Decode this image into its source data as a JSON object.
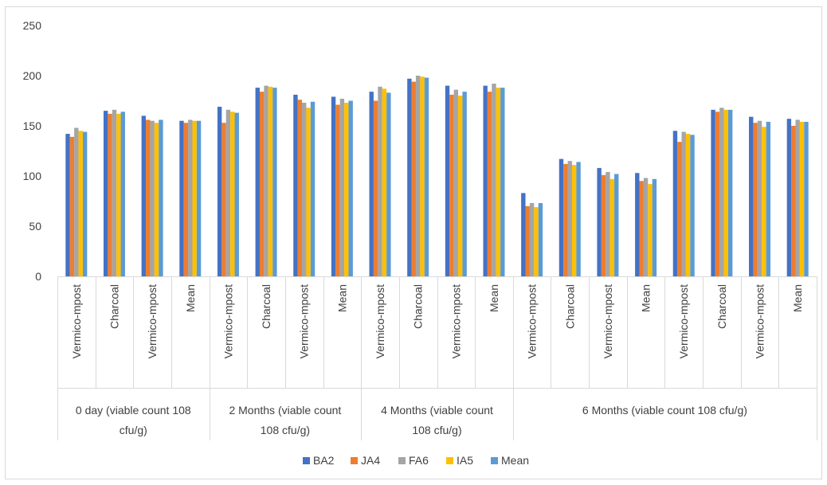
{
  "chart_data": {
    "type": "bar",
    "title": "",
    "xlabel": "",
    "ylabel": "",
    "ylim": [
      0,
      250
    ],
    "yticks": [
      "0",
      "50",
      "100",
      "150",
      "200",
      "250"
    ],
    "grid": false,
    "legend_position": "bottom",
    "groups": [
      {
        "label_line1": "0 day (viable count 108",
        "label_line2": "cfu/g)",
        "categories": [
          "Vermico-mpost",
          "Charcoal",
          "Vermico-mpost",
          "Mean"
        ]
      },
      {
        "label_line1": "2 Months (viable count",
        "label_line2": "108 cfu/g)",
        "categories": [
          "Vermico-mpost",
          "Charcoal",
          "Vermico-mpost",
          "Mean"
        ]
      },
      {
        "label_line1": "4 Months (viable count",
        "label_line2": "108 cfu/g)",
        "categories": [
          "Vermico-mpost",
          "Charcoal",
          "Vermico-mpost",
          "Mean"
        ]
      },
      {
        "label_line1": "6 Months (viable count 108 cfu/g)",
        "label_line2": "",
        "categories": [
          "Vermico-mpost",
          "Charcoal",
          "Vermico-mpost",
          "Mean",
          "Vermico-mpost",
          "Charcoal",
          "Vermico-mpost",
          "Mean"
        ]
      }
    ],
    "series": [
      {
        "name": "BA2",
        "color": "#4472c4",
        "values": [
          142,
          165,
          160,
          155,
          169,
          188,
          181,
          179,
          184,
          197,
          190,
          190,
          83,
          117,
          108,
          103,
          145,
          166,
          159,
          157
        ]
      },
      {
        "name": "JA4",
        "color": "#ed7d31",
        "values": [
          139,
          162,
          156,
          153,
          153,
          184,
          176,
          171,
          175,
          194,
          181,
          184,
          70,
          112,
          101,
          95,
          134,
          164,
          153,
          150
        ]
      },
      {
        "name": "FA6",
        "color": "#a5a5a5",
        "values": [
          148,
          166,
          155,
          156,
          166,
          190,
          173,
          177,
          189,
          200,
          186,
          192,
          73,
          115,
          104,
          98,
          144,
          168,
          155,
          156
        ]
      },
      {
        "name": "IA5",
        "color": "#ffc000",
        "values": [
          145,
          162,
          153,
          155,
          164,
          189,
          168,
          173,
          187,
          199,
          180,
          188,
          69,
          111,
          97,
          92,
          142,
          166,
          149,
          154
        ]
      },
      {
        "name": "Mean",
        "color": "#5b9bd5",
        "values": [
          144,
          164,
          156,
          155,
          163,
          188,
          174,
          175,
          183,
          198,
          184,
          188,
          73,
          114,
          102,
          97,
          141,
          166,
          154,
          154
        ]
      }
    ]
  }
}
